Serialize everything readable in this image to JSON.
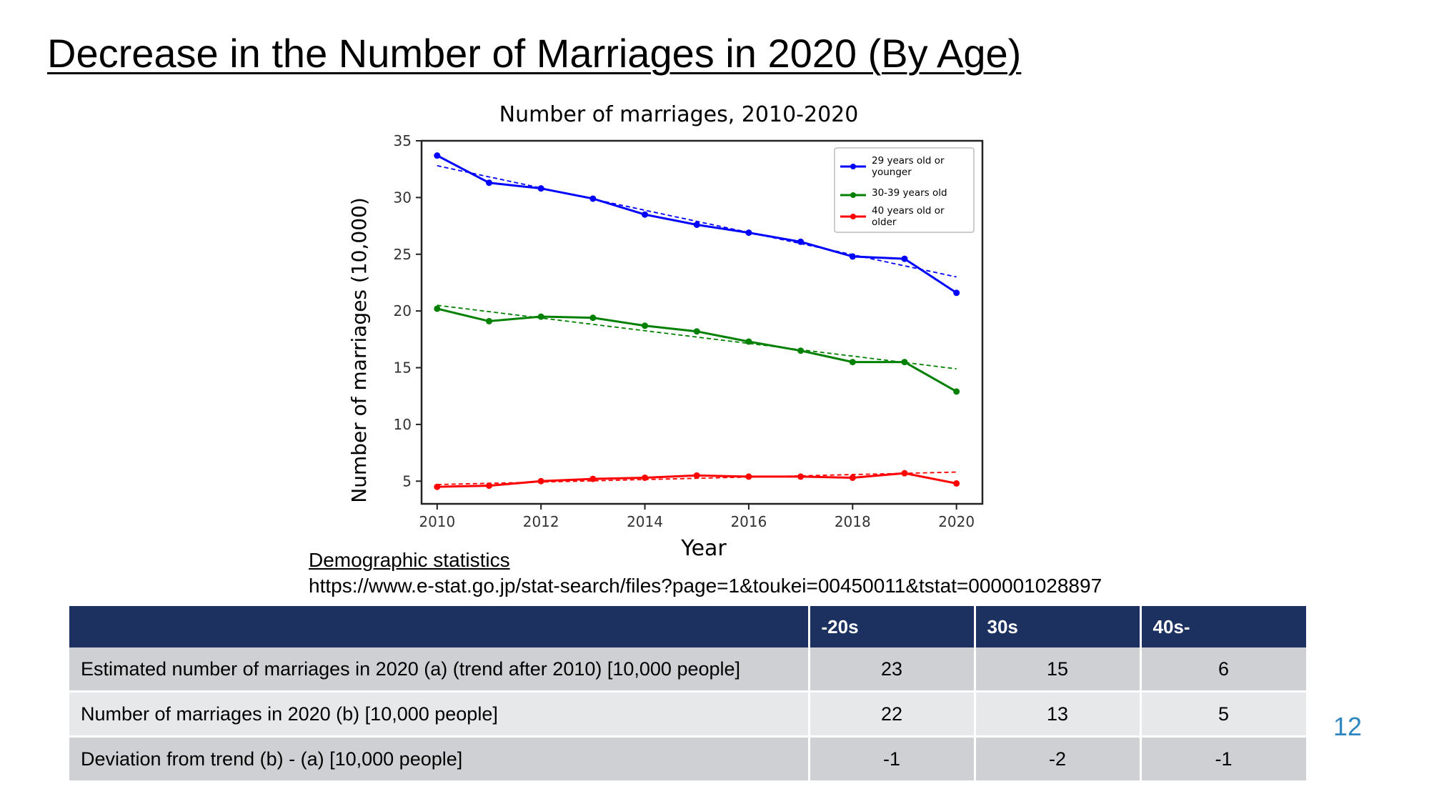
{
  "slide": {
    "title": "Decrease in the Number of Marriages in 2020 (By Age)",
    "page_number": "12"
  },
  "source": {
    "label": "Demographic statistics",
    "url": "https://www.e-stat.go.jp/stat-search/files?page=1&toukei=00450011&tstat=000001028897"
  },
  "chart_data": {
    "type": "line",
    "title": "Number of marriages, 2010-2020",
    "xlabel": "Year",
    "ylabel": "Number of marriages (10,000)",
    "xlim": [
      2009.7,
      2020.5
    ],
    "ylim": [
      3.0,
      35.0
    ],
    "xticks": [
      2010,
      2012,
      2014,
      2016,
      2018,
      2020
    ],
    "yticks": [
      5,
      10,
      15,
      20,
      25,
      30,
      35
    ],
    "grid": false,
    "legend_position": "top-right",
    "x": [
      2010,
      2011,
      2012,
      2013,
      2014,
      2015,
      2016,
      2017,
      2018,
      2019,
      2020
    ],
    "series": [
      {
        "name": "29 years old or younger",
        "color": "#0000ff",
        "values": [
          33.7,
          31.3,
          30.8,
          29.9,
          28.5,
          27.6,
          26.9,
          26.1,
          24.8,
          24.6,
          21.6
        ],
        "trend": [
          32.8,
          23.0
        ]
      },
      {
        "name": "30-39 years old",
        "color": "#008000",
        "values": [
          20.2,
          19.1,
          19.5,
          19.4,
          18.7,
          18.2,
          17.3,
          16.5,
          15.5,
          15.5,
          12.9
        ],
        "trend": [
          20.5,
          14.9
        ]
      },
      {
        "name": "40 years old or older",
        "color": "#ff0000",
        "values": [
          4.5,
          4.6,
          5.0,
          5.2,
          5.3,
          5.5,
          5.4,
          5.4,
          5.3,
          5.7,
          4.8
        ],
        "trend": [
          4.7,
          5.8
        ]
      }
    ]
  },
  "table": {
    "headers": [
      "",
      "-20s",
      "30s",
      "40s-"
    ],
    "rows": [
      {
        "label": "Estimated number of marriages in 2020 (a) (trend after 2010) [10,000 people]",
        "values": [
          "23",
          "15",
          "6"
        ]
      },
      {
        "label": "Number of marriages in 2020 (b) [10,000 people]",
        "values": [
          "22",
          "13",
          "5"
        ]
      },
      {
        "label": "Deviation from trend (b) - (a) [10,000 people]",
        "values": [
          "-1",
          "-2",
          "-1"
        ]
      }
    ]
  }
}
